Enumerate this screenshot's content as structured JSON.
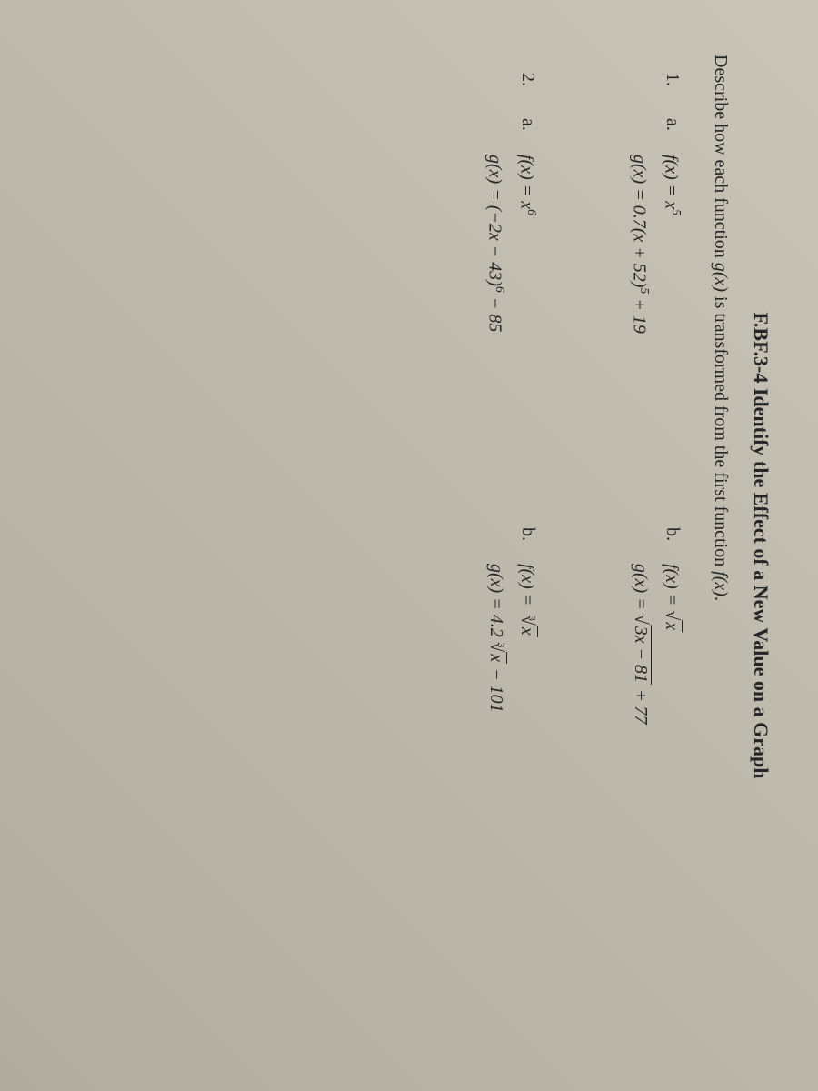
{
  "title": "F.BF.3-4 Identify the Effect of a New Value on a Graph",
  "instruction_prefix": "Describe how each function ",
  "instruction_gx": "g(x)",
  "instruction_mid": " is transformed from the first function ",
  "instruction_fx": "f(x)",
  "instruction_suffix": ".",
  "problems": [
    {
      "number": "1.",
      "a": {
        "label": "a.",
        "f_prefix": "f(x) = x",
        "f_exp": "5",
        "g_prefix": "g(x) = 0.7(x + 52)",
        "g_exp": "5",
        "g_suffix": " + 19"
      },
      "b": {
        "label": "b.",
        "f_prefix": "f(x) = ",
        "f_sqrt_content": "x",
        "g_prefix": "g(x) = ",
        "g_sqrt_content": "3x − 81",
        "g_suffix": " + 77"
      }
    },
    {
      "number": "2.",
      "a": {
        "label": "a.",
        "f_prefix": "f(x) = x",
        "f_exp": "6",
        "g_prefix": "g(x) = (−2x − 43)",
        "g_exp": "6",
        "g_suffix": " − 85"
      },
      "b": {
        "label": "b.",
        "f_prefix": "f(x) = ",
        "f_cbrt_content": "x",
        "g_prefix": "g(x) = 4.2",
        "g_cbrt_content": "x",
        "g_suffix": " − 101"
      }
    }
  ],
  "style": {
    "background_color": "#b8b4a8",
    "text_color": "#252525",
    "title_fontsize": 22,
    "body_fontsize": 20,
    "font_family": "Times New Roman"
  }
}
